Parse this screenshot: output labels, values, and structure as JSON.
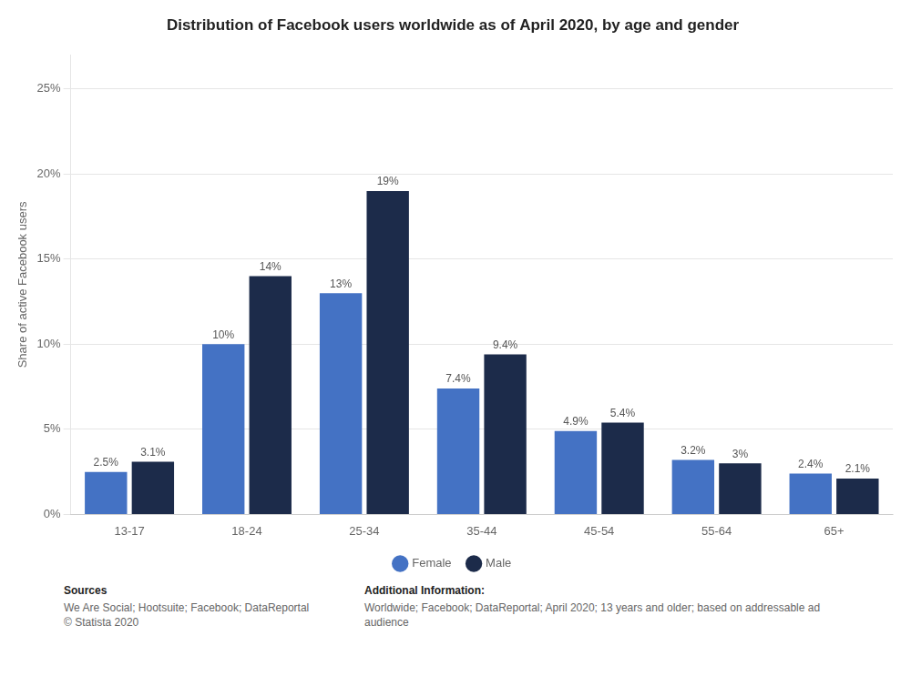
{
  "chart_data": {
    "type": "bar",
    "title": "Distribution of Facebook users worldwide as of April 2020, by age and gender",
    "categories": [
      "13-17",
      "18-24",
      "25-34",
      "35-44",
      "45-54",
      "55-64",
      "65+"
    ],
    "series": [
      {
        "name": "Female",
        "color": "#4472C4",
        "values": [
          2.5,
          10.0,
          13.0,
          7.4,
          4.9,
          3.2,
          2.4
        ],
        "value_labels": [
          "2.5%",
          "10%",
          "13%",
          "7.4%",
          "4.9%",
          "3.2%",
          "2.4%"
        ]
      },
      {
        "name": "Male",
        "color": "#1C2B4A",
        "values": [
          3.1,
          14.0,
          19.0,
          9.4,
          5.4,
          3.0,
          2.1
        ],
        "value_labels": [
          "3.1%",
          "14%",
          "19%",
          "9.4%",
          "5.4%",
          "3%",
          "2.1%"
        ]
      }
    ],
    "ylabel": "Share of active Facebook users",
    "ylim": [
      0,
      27
    ],
    "yticks": [
      {
        "value": 0,
        "label": "0%"
      },
      {
        "value": 5,
        "label": "5%"
      },
      {
        "value": 10,
        "label": "10%"
      },
      {
        "value": 15,
        "label": "15%"
      },
      {
        "value": 20,
        "label": "20%"
      },
      {
        "value": 25,
        "label": "25%"
      }
    ],
    "grid": true,
    "legend": "bottom",
    "data_labels": true,
    "annotations": [
      {
        "label": "Sources",
        "text": "We Are Social; Hootsuite; Facebook; DataReportal\n© Statista 2020"
      },
      {
        "label": "Additional Information:",
        "text": "Worldwide; Facebook; DataReportal; April 2020; 13 years and older; based on addressable ad audience"
      }
    ]
  }
}
